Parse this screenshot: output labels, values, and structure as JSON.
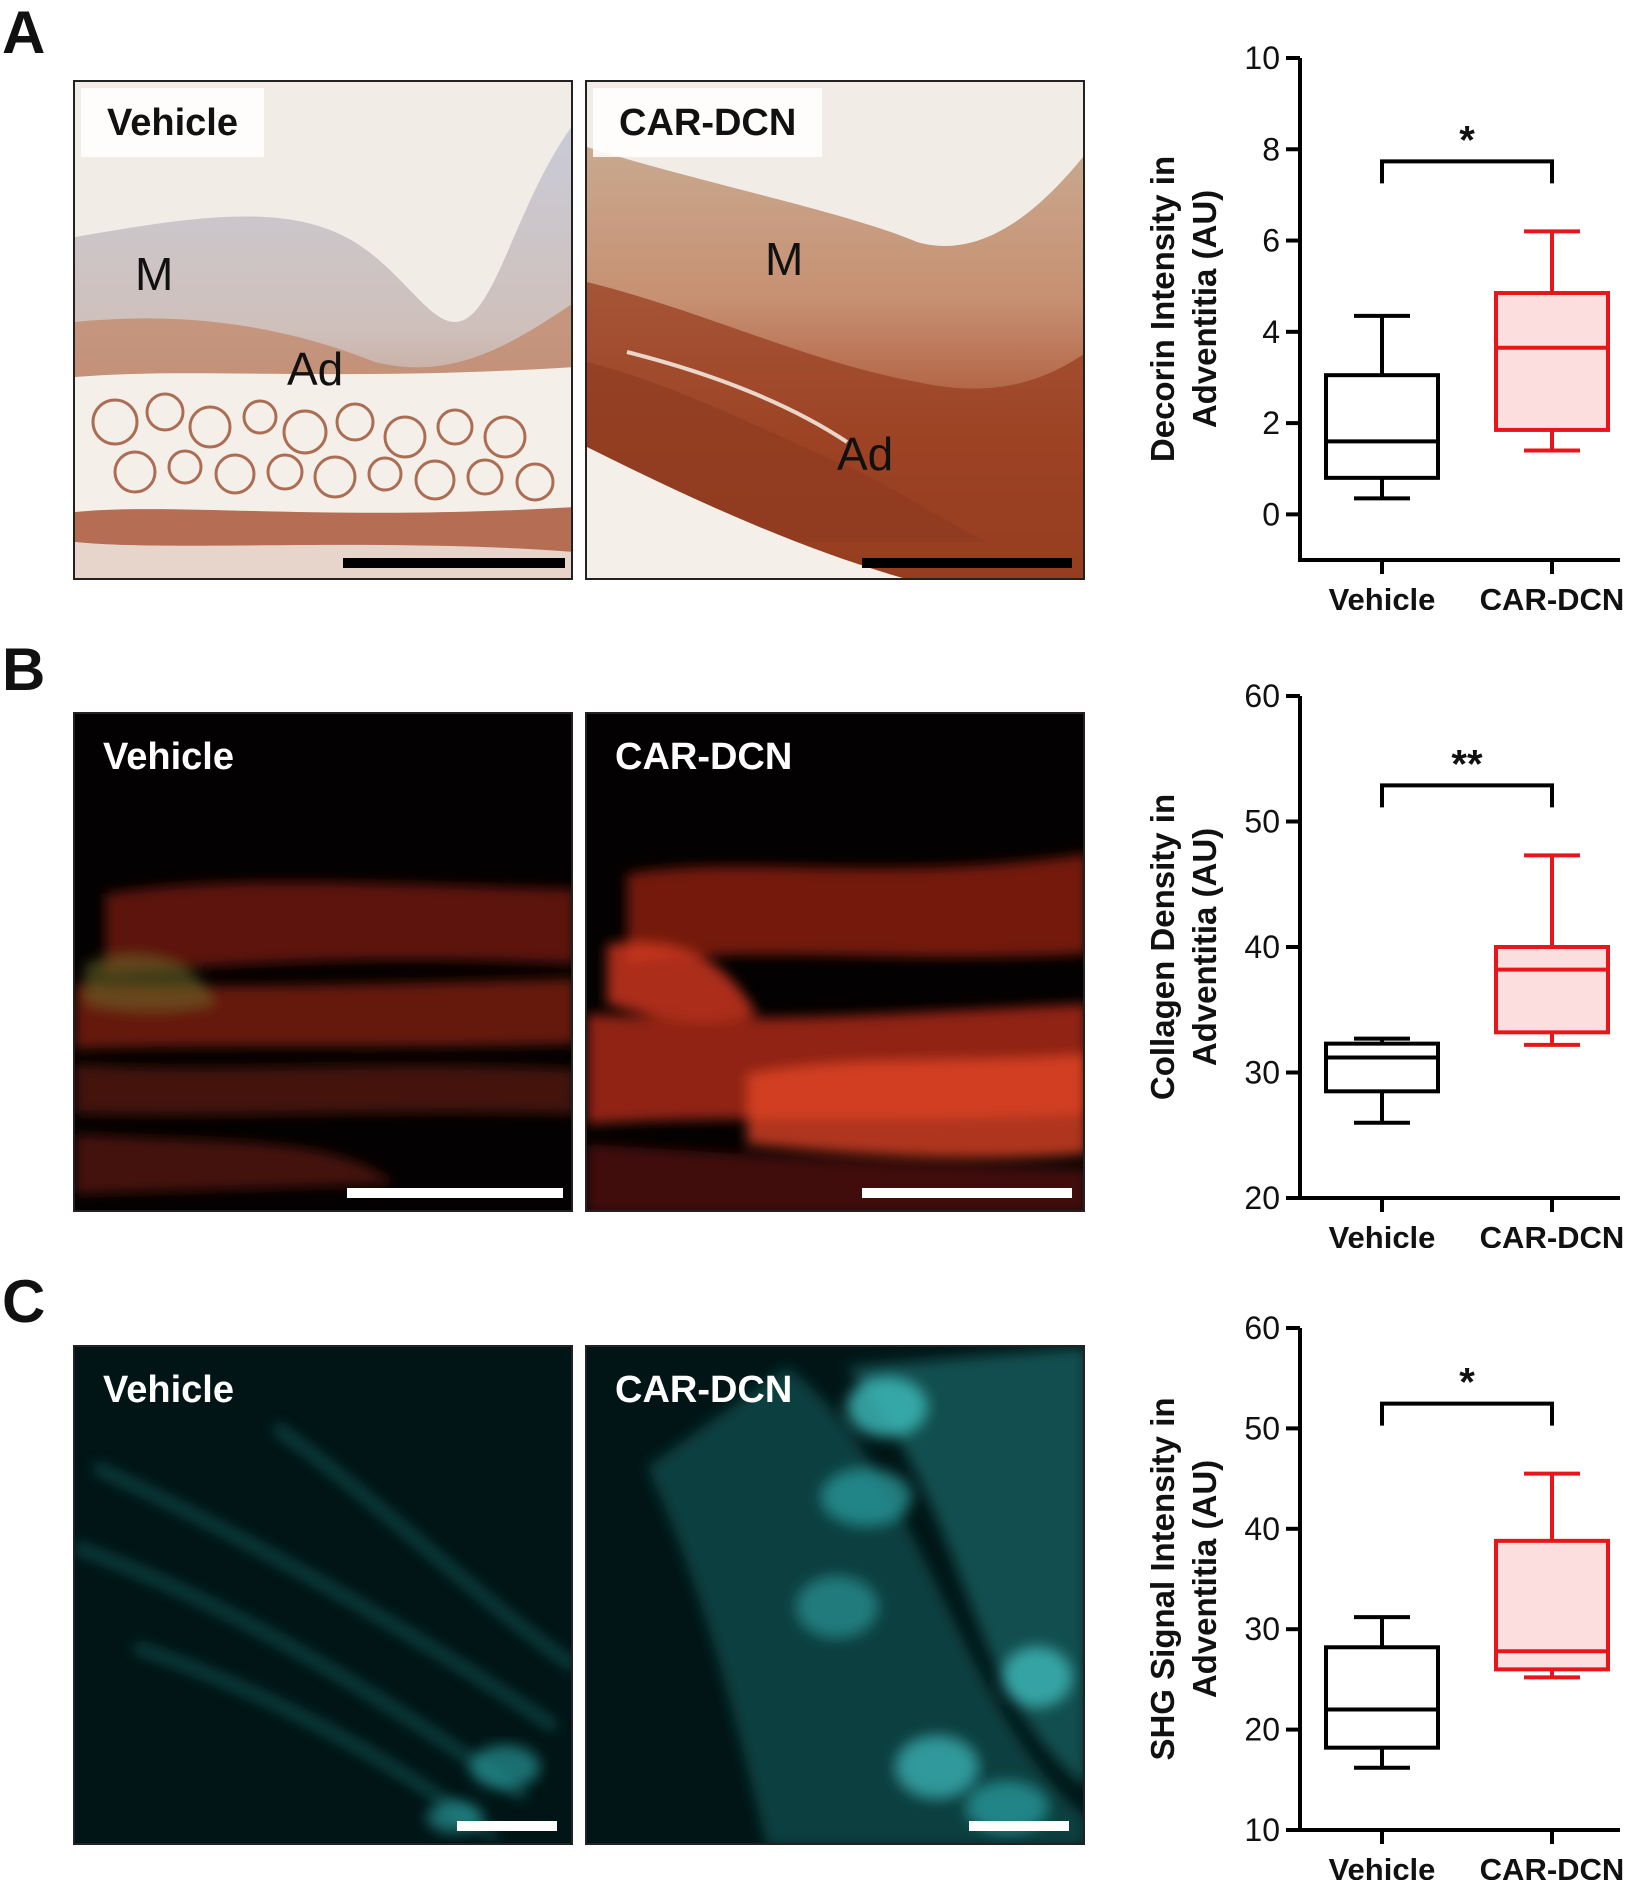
{
  "figure": {
    "panels": [
      {
        "letter": "A",
        "images": [
          {
            "label": "Vehicle",
            "layer_labels": [
              "M",
              "Ad"
            ]
          },
          {
            "label": "CAR-DCN",
            "layer_labels": [
              "M",
              "Ad"
            ]
          }
        ],
        "chart_data": {
          "type": "box",
          "categories": [
            "Vehicle",
            "CAR-DCN"
          ],
          "ylabel_lines": [
            "Decorin Intensity in",
            "Adventitia (AU)"
          ],
          "ylim": [
            -1,
            10
          ],
          "yticks": [
            0,
            2,
            4,
            6,
            8,
            10
          ],
          "significance": "*",
          "boxes": [
            {
              "category": "Vehicle",
              "min": 0.35,
              "q1": 0.8,
              "median": 1.6,
              "q3": 3.05,
              "max": 4.35,
              "color": "#000000",
              "fill": "#ffffff"
            },
            {
              "category": "CAR-DCN",
              "min": 1.4,
              "q1": 1.85,
              "median": 3.65,
              "q3": 4.85,
              "max": 6.2,
              "color": "#e8161b",
              "fill": "#fcdede"
            }
          ]
        }
      },
      {
        "letter": "B",
        "images": [
          {
            "label": "Vehicle"
          },
          {
            "label": "CAR-DCN"
          }
        ],
        "chart_data": {
          "type": "box",
          "categories": [
            "Vehicle",
            "CAR-DCN"
          ],
          "ylabel_lines": [
            "Collagen Density in",
            "Adventitia (AU)"
          ],
          "ylim": [
            20,
            60
          ],
          "yticks": [
            20,
            30,
            40,
            50,
            60
          ],
          "significance": "**",
          "boxes": [
            {
              "category": "Vehicle",
              "min": 26.0,
              "q1": 28.5,
              "median": 31.2,
              "q3": 32.3,
              "max": 32.7,
              "color": "#000000",
              "fill": "#ffffff"
            },
            {
              "category": "CAR-DCN",
              "min": 32.2,
              "q1": 33.2,
              "median": 38.2,
              "q3": 40.0,
              "max": 47.3,
              "color": "#e8161b",
              "fill": "#fcdede"
            }
          ]
        }
      },
      {
        "letter": "C",
        "images": [
          {
            "label": "Vehicle"
          },
          {
            "label": "CAR-DCN"
          }
        ],
        "chart_data": {
          "type": "box",
          "categories": [
            "Vehicle",
            "CAR-DCN"
          ],
          "ylabel_lines": [
            "SHG Signal Intensity in",
            "Adventitia (AU)"
          ],
          "ylim": [
            10,
            60
          ],
          "yticks": [
            10,
            20,
            30,
            40,
            50,
            60
          ],
          "significance": "*",
          "boxes": [
            {
              "category": "Vehicle",
              "min": 16.2,
              "q1": 18.2,
              "median": 22.0,
              "q3": 28.2,
              "max": 31.2,
              "color": "#000000",
              "fill": "#ffffff"
            },
            {
              "category": "CAR-DCN",
              "min": 25.2,
              "q1": 26.0,
              "median": 27.8,
              "q3": 38.8,
              "max": 45.5,
              "color": "#e8161b",
              "fill": "#fcdede"
            }
          ]
        }
      }
    ]
  }
}
